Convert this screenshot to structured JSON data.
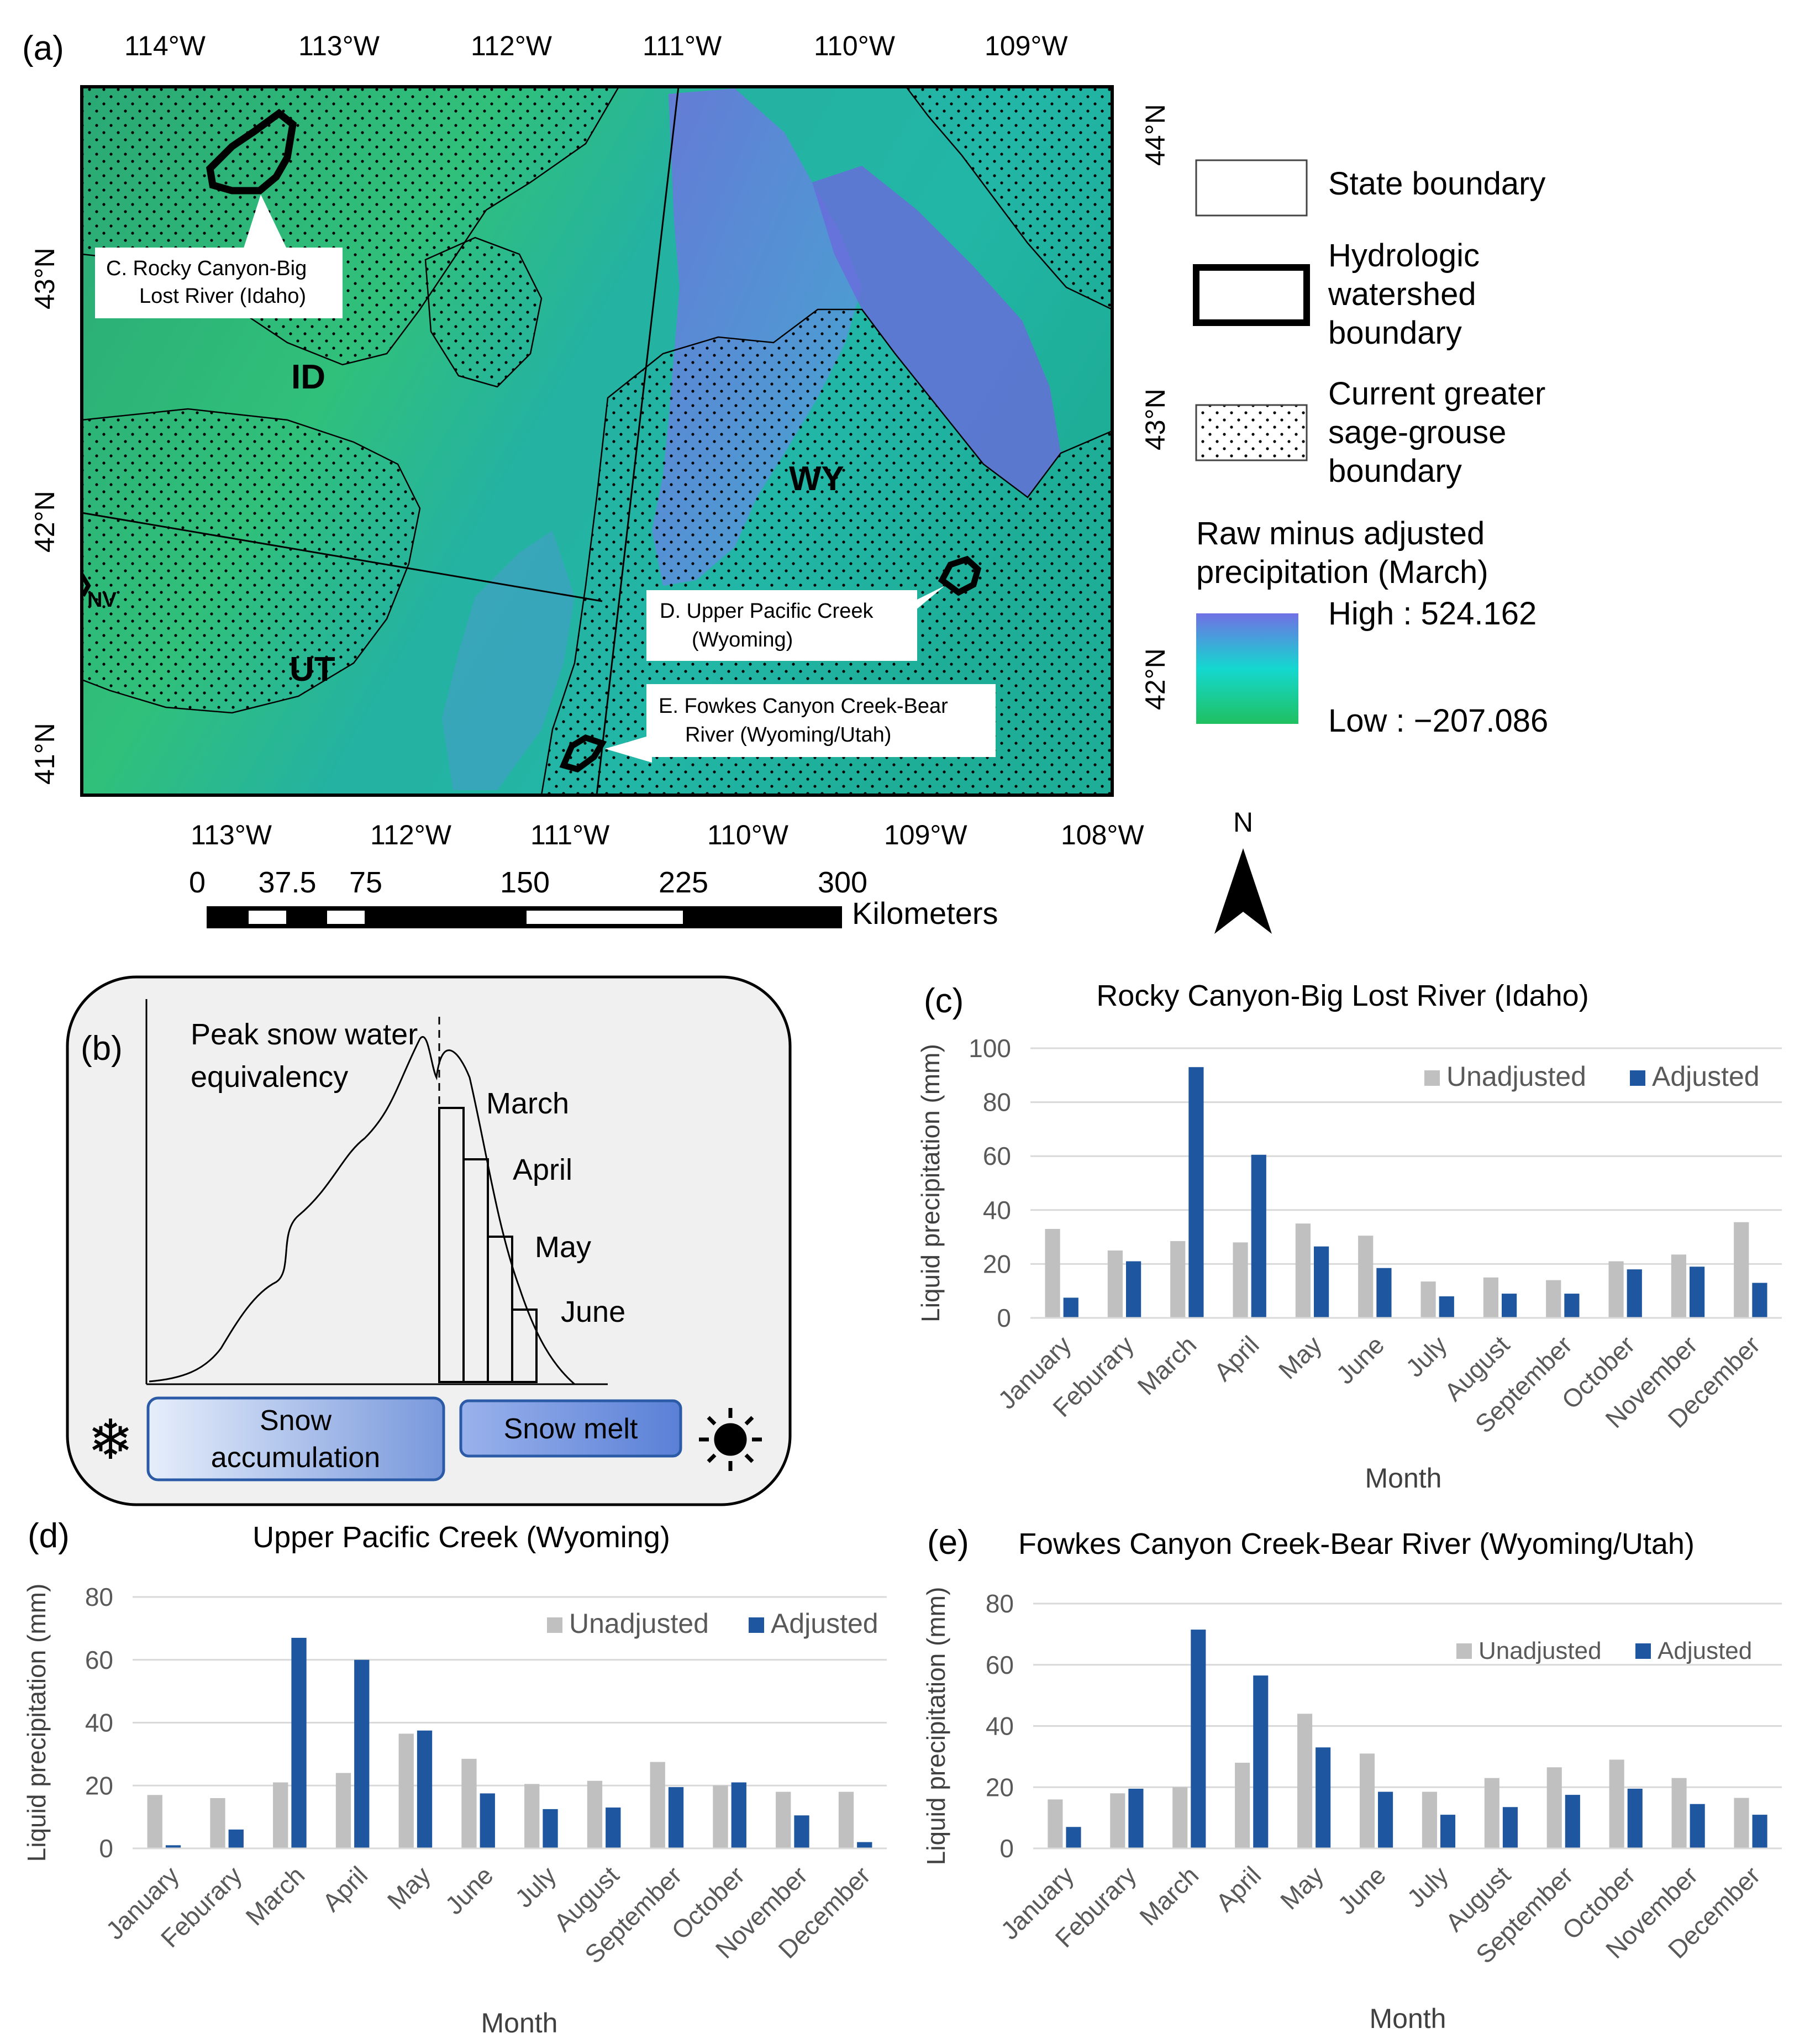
{
  "panel_labels": {
    "a": "(a)",
    "b": "(b)",
    "c": "(c)",
    "d": "(d)",
    "e": "(e)"
  },
  "colors": {
    "unadjusted": "#c0c0c0",
    "adjusted": "#1f56a0",
    "map_high": "#6a6adc",
    "map_mid": "#22b9b0",
    "map_low": "#27c06c",
    "panel_bg": "#f0f0f0"
  },
  "map": {
    "top_ticks": [
      "114°W",
      "113°W",
      "112°W",
      "111°W",
      "110°W",
      "109°W"
    ],
    "bottom_ticks": [
      "113°W",
      "112°W",
      "111°W",
      "110°W",
      "109°W",
      "108°W"
    ],
    "left_ticks": [
      "43°N",
      "42°N",
      "41°N"
    ],
    "right_ticks": [
      "44°N",
      "43°N",
      "42°N"
    ],
    "states": [
      "ID",
      "WY",
      "UT",
      "NV"
    ],
    "callouts": {
      "c": [
        "C. Rocky Canyon-Big",
        "Lost River (Idaho)"
      ],
      "d": [
        "D. Upper Pacific Creek",
        "(Wyoming)"
      ],
      "e": [
        "E. Fowkes Canyon Creek-Bear",
        "River (Wyoming/Utah)"
      ]
    },
    "scale": {
      "ticks": [
        "0",
        "37.5",
        "75",
        "150",
        "225",
        "300"
      ],
      "unit": "Kilometers"
    },
    "north": "N"
  },
  "legend": {
    "state": "State boundary",
    "watershed": [
      "Hydrologic",
      "watershed",
      "boundary"
    ],
    "sagegrouse": [
      "Current greater",
      "sage-grouse",
      "boundary"
    ],
    "raster_title": [
      "Raw minus adjusted",
      "precipitation (March)"
    ],
    "high": "High : 524.162",
    "low": "Low : −207.086"
  },
  "diagram": {
    "peak": [
      "Peak snow water",
      "equivalency"
    ],
    "months": [
      "March",
      "April",
      "May",
      "June"
    ],
    "accumulation": [
      "Snow",
      "accumulation"
    ],
    "melt": "Snow melt"
  },
  "chart_data": [
    {
      "type": "bar",
      "title": "Rocky Canyon-Big Lost River (Idaho)",
      "xlabel": "Month",
      "ylabel": "Liquid precipitation (mm)",
      "ylim": [
        0,
        100
      ],
      "yticks": [
        0,
        20,
        40,
        60,
        80,
        100
      ],
      "categories": [
        "January",
        "Feburary",
        "March",
        "April",
        "May",
        "June",
        "July",
        "August",
        "September",
        "October",
        "November",
        "December"
      ],
      "series": [
        {
          "name": "Unadjusted",
          "values": [
            33,
            25,
            28.5,
            28,
            35,
            30.5,
            13.5,
            15,
            14,
            21,
            23.5,
            35.5
          ]
        },
        {
          "name": "Adjusted",
          "values": [
            7.5,
            21,
            93,
            60.5,
            26.5,
            18.5,
            8,
            9,
            9,
            18,
            19,
            13
          ]
        }
      ],
      "legend": "top-right",
      "grid": true
    },
    {
      "type": "bar",
      "title": "Upper Pacific Creek (Wyoming)",
      "xlabel": "Month",
      "ylabel": "Liquid precipitation (mm)",
      "ylim": [
        0,
        80
      ],
      "yticks": [
        0,
        20,
        40,
        60,
        80
      ],
      "categories": [
        "January",
        "Feburary",
        "March",
        "April",
        "May",
        "June",
        "July",
        "August",
        "September",
        "October",
        "November",
        "December"
      ],
      "series": [
        {
          "name": "Unadjusted",
          "values": [
            17,
            16,
            21,
            24,
            36.5,
            28.5,
            20.5,
            21.5,
            27.5,
            20,
            18,
            18
          ]
        },
        {
          "name": "Adjusted",
          "values": [
            1,
            6,
            67,
            60,
            37.5,
            17.5,
            12.5,
            13,
            19.5,
            21,
            10.5,
            2
          ]
        }
      ],
      "legend": "top-right",
      "grid": true
    },
    {
      "type": "bar",
      "title": "Fowkes Canyon Creek-Bear River (Wyoming/Utah)",
      "xlabel": "Month",
      "ylabel": "Liquid precipitation (mm)",
      "ylim": [
        0,
        80
      ],
      "yticks": [
        0,
        20,
        40,
        60,
        80
      ],
      "categories": [
        "January",
        "Feburary",
        "March",
        "April",
        "May",
        "June",
        "July",
        "August",
        "September",
        "October",
        "November",
        "December"
      ],
      "series": [
        {
          "name": "Unadjusted",
          "values": [
            16,
            18,
            20,
            28,
            44,
            31,
            18.5,
            23,
            26.5,
            29,
            23,
            16.5
          ]
        },
        {
          "name": "Adjusted",
          "values": [
            7,
            19.5,
            71.5,
            56.5,
            33,
            18.5,
            11,
            13.5,
            17.5,
            19.5,
            14.5,
            11
          ]
        }
      ],
      "legend": "top-right",
      "grid": true
    }
  ]
}
